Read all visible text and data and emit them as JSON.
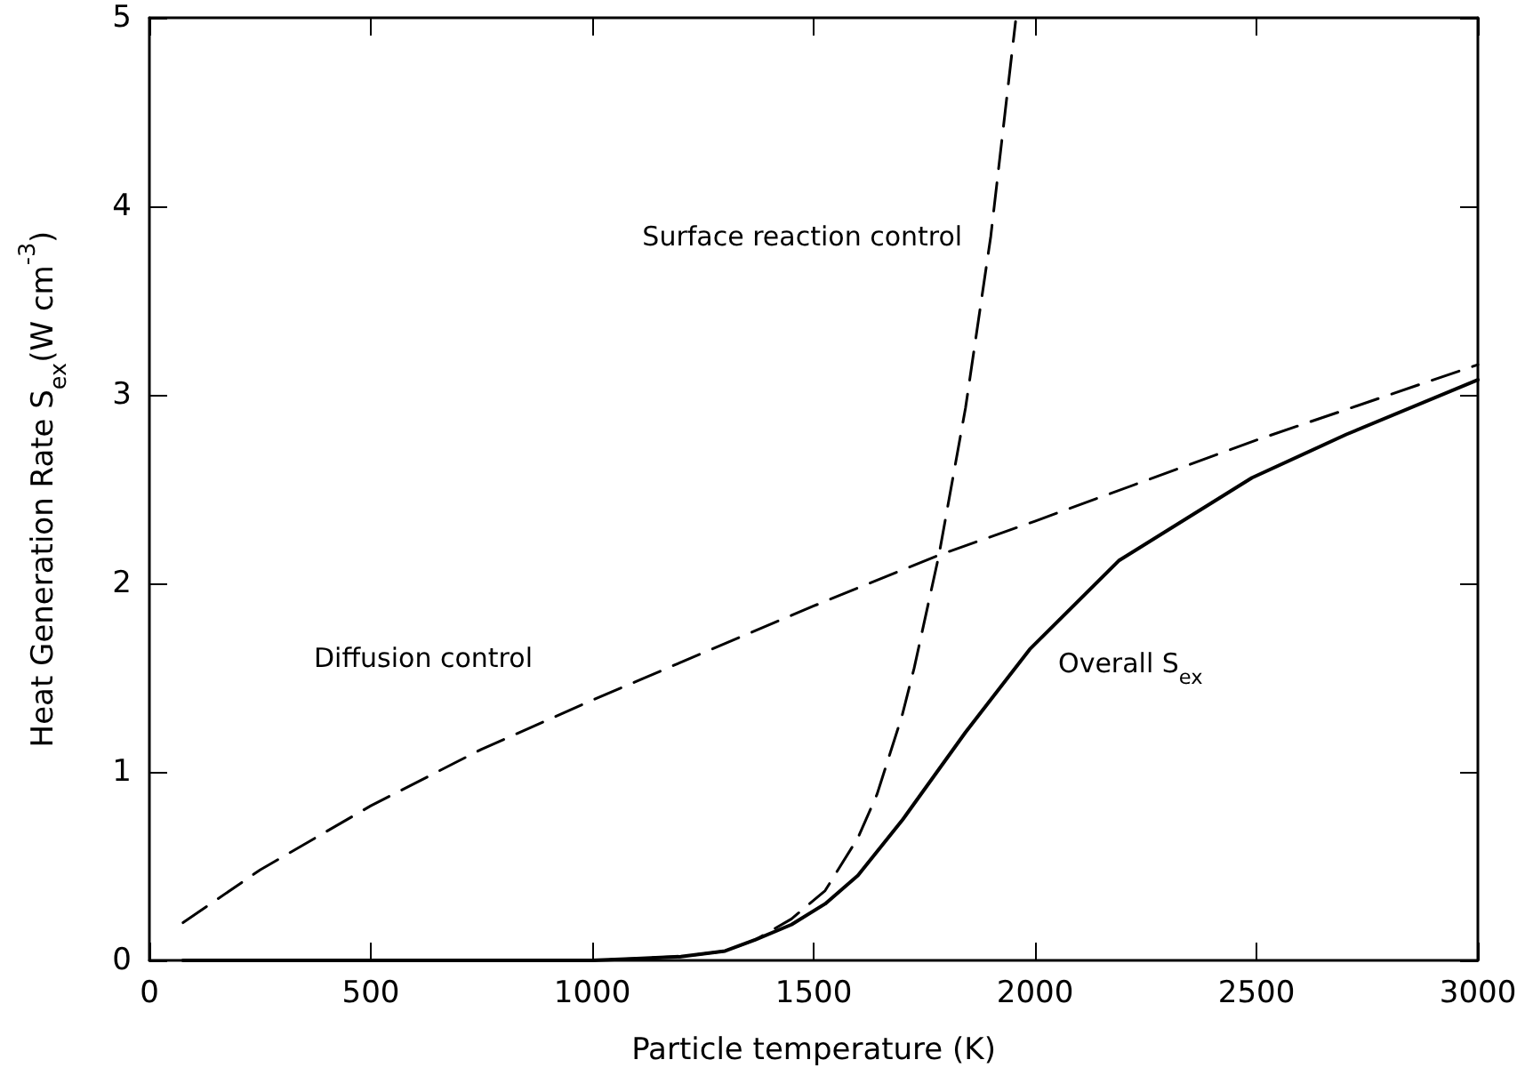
{
  "chart_data": {
    "type": "line",
    "xlabel": "Particle temperature (K)",
    "ylabel": "Heat Generation Rate S$_{ex}$(W cm$^{-3}$)",
    "xlim": [
      0,
      3000
    ],
    "xticks": [
      0,
      500,
      1000,
      1500,
      2000,
      2500,
      3000
    ],
    "ylim": [
      0,
      5
    ],
    "yticks": [
      0,
      1,
      2,
      3,
      4,
      5
    ],
    "grid": false,
    "legend": false,
    "marker": "none",
    "series": [
      {
        "name": "Surface reaction control",
        "color": "#000000",
        "line_style": "dashed",
        "x": [
          76,
          500,
          1000,
          1100,
          1200,
          1300,
          1369,
          1450,
          1526,
          1600,
          1643,
          1700,
          1727,
          1783,
          1843,
          1900,
          1956
        ],
        "values": [
          0,
          0,
          0,
          0.01,
          0.02,
          0.05,
          0.11,
          0.22,
          0.37,
          0.65,
          0.88,
          1.3,
          1.55,
          2.15,
          2.93,
          3.84,
          4.98
        ]
      },
      {
        "name": "Diffusion control",
        "color": "#000000",
        "line_style": "dashed",
        "x": [
          76,
          250,
          500,
          750,
          1000,
          1269,
          1500,
          1783,
          2000,
          2500,
          3000
        ],
        "values": [
          0.2,
          0.48,
          0.82,
          1.12,
          1.38,
          1.65,
          1.88,
          2.15,
          2.33,
          2.76,
          3.16
        ]
      },
      {
        "name": "Overall S$_{ex}$",
        "color": "#000000",
        "line_style": "solid",
        "x": [
          76,
          500,
          1000,
          1100,
          1200,
          1300,
          1369,
          1450,
          1526,
          1600,
          1699,
          1843,
          1988,
          2189,
          2490,
          2703,
          3000
        ],
        "values": [
          0,
          0,
          0,
          0.01,
          0.02,
          0.05,
          0.11,
          0.19,
          0.3,
          0.45,
          0.74,
          1.21,
          1.65,
          2.12,
          2.56,
          2.79,
          3.08
        ]
      }
    ]
  }
}
